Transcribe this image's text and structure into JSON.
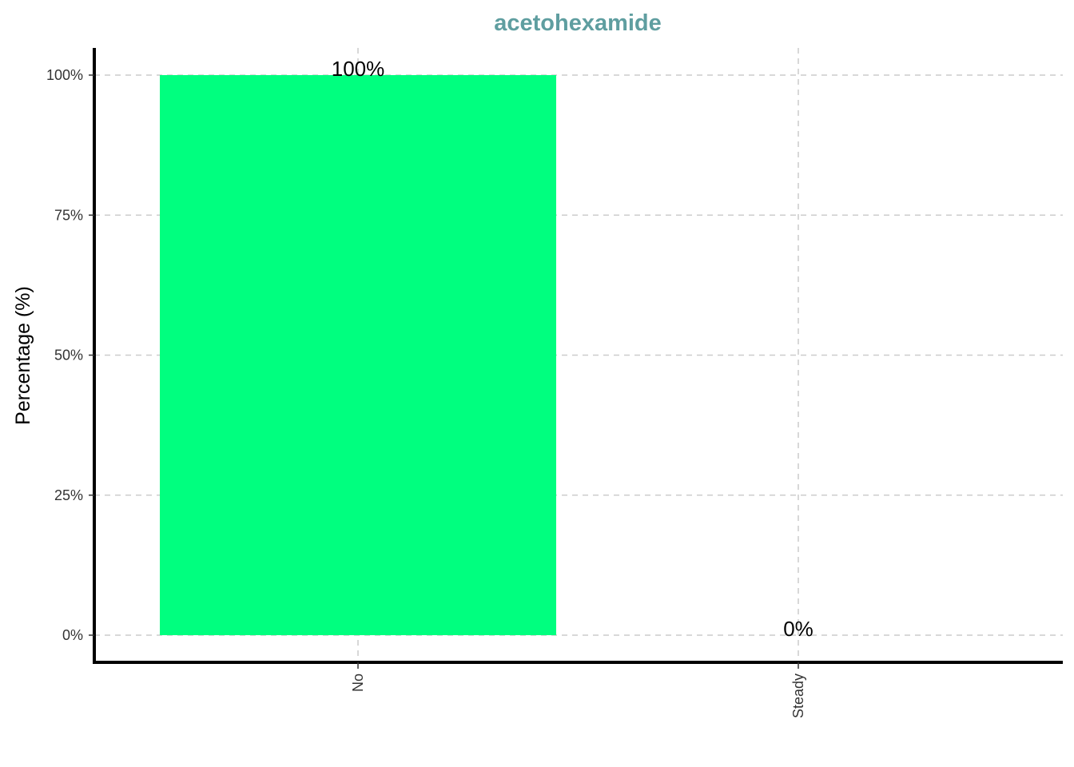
{
  "chart_data": {
    "type": "bar",
    "title": "acetohexamide",
    "xlabel": "",
    "ylabel": "Percentage (%)",
    "categories": [
      "No",
      "Steady"
    ],
    "values": [
      100,
      0
    ],
    "data_labels": [
      "100%",
      "0%"
    ],
    "ylim": [
      -5,
      105
    ],
    "yticks": [
      0,
      25,
      50,
      75,
      100
    ],
    "ytick_labels": [
      "0%",
      "25%",
      "50%",
      "75%",
      "100%"
    ],
    "grid": true,
    "legend": "none",
    "colors": {
      "bar": "#00FF7F",
      "title": "#5F9EA0",
      "grid": "#CCCCCC",
      "axis": "#000000"
    }
  }
}
